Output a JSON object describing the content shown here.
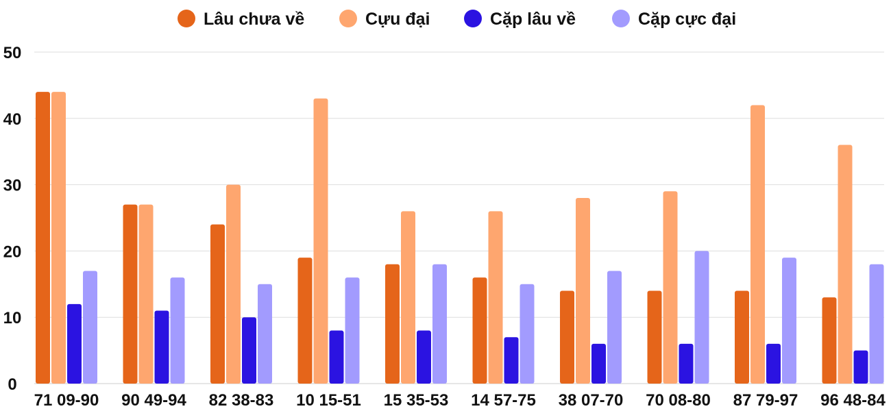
{
  "chart_data": {
    "type": "bar",
    "title": "",
    "xlabel": "",
    "ylabel": "",
    "ylim": [
      0,
      50
    ],
    "yticks": [
      0,
      10,
      20,
      30,
      40,
      50
    ],
    "grid": true,
    "legend_position": "top-center",
    "categories": [
      "71 09-90",
      "90 49-94",
      "82 38-83",
      "10 15-51",
      "15 35-53",
      "14 57-75",
      "38 07-70",
      "70 08-80",
      "87 79-97",
      "96 48-84"
    ],
    "series": [
      {
        "name": "Lâu chưa về",
        "color": "#e5651a",
        "values": [
          44,
          27,
          24,
          19,
          18,
          16,
          14,
          14,
          14,
          13
        ]
      },
      {
        "name": "Cựu đại",
        "color": "#fea66f",
        "values": [
          44,
          27,
          30,
          43,
          26,
          26,
          28,
          29,
          42,
          36
        ]
      },
      {
        "name": "Cặp lâu về",
        "color": "#2b13e1",
        "values": [
          12,
          11,
          10,
          8,
          8,
          7,
          6,
          6,
          6,
          5
        ]
      },
      {
        "name": "Cặp cực đại",
        "color": "#a29bfe",
        "values": [
          17,
          16,
          15,
          16,
          18,
          15,
          17,
          20,
          19,
          18
        ]
      }
    ]
  }
}
